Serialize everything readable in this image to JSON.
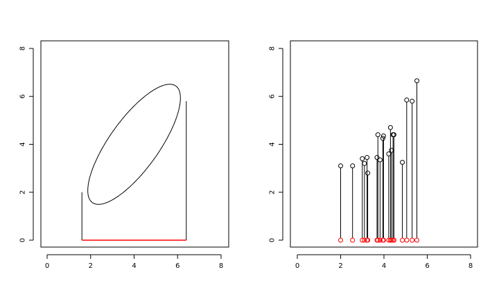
{
  "chart_data": [
    {
      "type": "line",
      "title": "",
      "xlabel": "",
      "ylabel": "",
      "xlim": [
        0,
        8
      ],
      "ylim": [
        0,
        8
      ],
      "x_ticks": [
        0,
        2,
        4,
        6,
        8
      ],
      "y_ticks": [
        0,
        2,
        4,
        6,
        8
      ],
      "x_tick_labels": [
        "0",
        "2",
        "4",
        "6",
        "8"
      ],
      "y_tick_labels": [
        "0",
        "2",
        "4",
        "6",
        "8"
      ],
      "grid": false,
      "ellipse": {
        "center": [
          4.0,
          4.0
        ],
        "semi_axes": [
          3.1,
          1.1
        ],
        "angle_deg": 51,
        "color": "#000000"
      },
      "vertical_lines": [
        {
          "x": 1.6,
          "y0": 0,
          "y1": 2.0,
          "color": "#000000"
        },
        {
          "x": 6.4,
          "y0": 0,
          "y1": 5.8,
          "color": "#000000"
        }
      ],
      "segment": {
        "x0": 1.6,
        "x1": 6.4,
        "y": 0,
        "color": "#ff0000"
      }
    },
    {
      "type": "scatter",
      "title": "",
      "xlabel": "",
      "ylabel": "",
      "xlim": [
        0,
        8
      ],
      "ylim": [
        0,
        8
      ],
      "x_ticks": [
        0,
        2,
        4,
        6,
        8
      ],
      "y_ticks": [
        0,
        2,
        4,
        6,
        8
      ],
      "x_tick_labels": [
        "0",
        "2",
        "4",
        "6",
        "8"
      ],
      "y_tick_labels": [
        "0",
        "2",
        "4",
        "6",
        "8"
      ],
      "grid": false,
      "point_color": "#000000",
      "projection_color": "#ff0000",
      "points": [
        {
          "x": 2.0,
          "y": 3.1
        },
        {
          "x": 2.55,
          "y": 3.1
        },
        {
          "x": 3.0,
          "y": 3.4
        },
        {
          "x": 3.1,
          "y": 3.2
        },
        {
          "x": 3.22,
          "y": 3.45
        },
        {
          "x": 3.25,
          "y": 2.8
        },
        {
          "x": 3.68,
          "y": 3.45
        },
        {
          "x": 3.72,
          "y": 4.4
        },
        {
          "x": 3.82,
          "y": 3.35
        },
        {
          "x": 3.95,
          "y": 4.25
        },
        {
          "x": 3.98,
          "y": 4.35
        },
        {
          "x": 4.22,
          "y": 3.6
        },
        {
          "x": 4.3,
          "y": 4.7
        },
        {
          "x": 4.35,
          "y": 3.75
        },
        {
          "x": 4.42,
          "y": 4.4
        },
        {
          "x": 4.46,
          "y": 4.4
        },
        {
          "x": 4.85,
          "y": 3.25
        },
        {
          "x": 5.05,
          "y": 5.85
        },
        {
          "x": 5.3,
          "y": 5.8
        },
        {
          "x": 5.52,
          "y": 6.65
        }
      ]
    }
  ]
}
